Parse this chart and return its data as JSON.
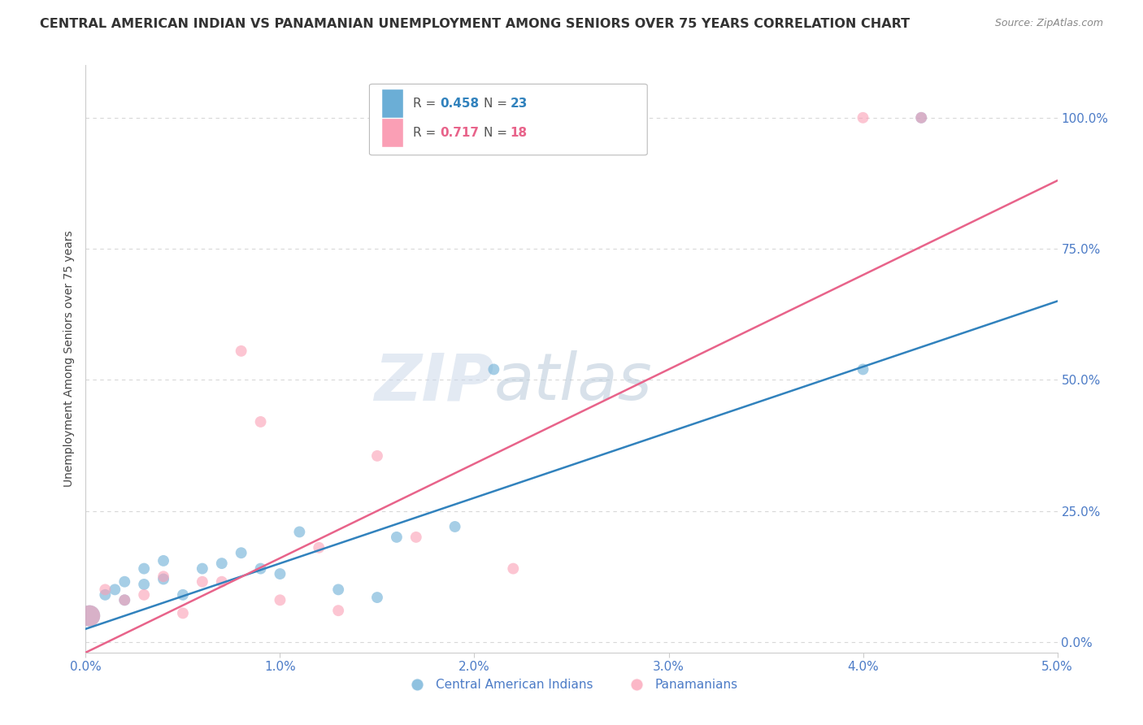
{
  "title": "CENTRAL AMERICAN INDIAN VS PANAMANIAN UNEMPLOYMENT AMONG SENIORS OVER 75 YEARS CORRELATION CHART",
  "source": "Source: ZipAtlas.com",
  "ylabel": "Unemployment Among Seniors over 75 years",
  "xlim": [
    0.0,
    0.05
  ],
  "ylim": [
    -0.02,
    1.1
  ],
  "legend_labels": [
    "Central American Indians",
    "Panamanians"
  ],
  "R_blue": "0.458",
  "N_blue": "23",
  "R_pink": "0.717",
  "N_pink": "18",
  "blue_color": "#6baed6",
  "pink_color": "#fa9fb5",
  "blue_line_color": "#3182bd",
  "pink_line_color": "#e8638a",
  "watermark_zip": "ZIP",
  "watermark_atlas": "atlas",
  "blue_scatter_x": [
    0.0002,
    0.001,
    0.0015,
    0.002,
    0.002,
    0.003,
    0.003,
    0.004,
    0.004,
    0.005,
    0.006,
    0.007,
    0.008,
    0.009,
    0.01,
    0.011,
    0.013,
    0.015,
    0.016,
    0.019,
    0.021,
    0.04,
    0.043
  ],
  "blue_scatter_y": [
    0.05,
    0.09,
    0.1,
    0.08,
    0.115,
    0.11,
    0.14,
    0.12,
    0.155,
    0.09,
    0.14,
    0.15,
    0.17,
    0.14,
    0.13,
    0.21,
    0.1,
    0.085,
    0.2,
    0.22,
    0.52,
    0.52,
    1.0
  ],
  "blue_sizes": [
    350,
    100,
    100,
    100,
    100,
    100,
    100,
    100,
    100,
    100,
    100,
    100,
    100,
    100,
    100,
    100,
    100,
    100,
    100,
    100,
    100,
    100,
    100
  ],
  "pink_scatter_x": [
    0.0002,
    0.001,
    0.002,
    0.003,
    0.004,
    0.005,
    0.006,
    0.007,
    0.008,
    0.009,
    0.01,
    0.012,
    0.013,
    0.015,
    0.017,
    0.022,
    0.04,
    0.043
  ],
  "pink_scatter_y": [
    0.05,
    0.1,
    0.08,
    0.09,
    0.125,
    0.055,
    0.115,
    0.115,
    0.555,
    0.42,
    0.08,
    0.18,
    0.06,
    0.355,
    0.2,
    0.14,
    1.0,
    1.0
  ],
  "pink_sizes": [
    350,
    100,
    100,
    100,
    100,
    100,
    100,
    100,
    100,
    100,
    100,
    100,
    100,
    100,
    100,
    100,
    100,
    100
  ],
  "blue_line_x0": 0.0,
  "blue_line_x1": 0.05,
  "blue_line_y0": 0.025,
  "blue_line_y1": 0.65,
  "pink_line_x0": 0.0,
  "pink_line_x1": 0.05,
  "pink_line_y0": -0.02,
  "pink_line_y1": 0.88,
  "x_tick_vals": [
    0.0,
    0.01,
    0.02,
    0.03,
    0.04,
    0.05
  ],
  "x_tick_labels": [
    "0.0%",
    "1.0%",
    "2.0%",
    "3.0%",
    "4.0%",
    "5.0%"
  ],
  "y_tick_vals": [
    0.0,
    0.25,
    0.5,
    0.75,
    1.0
  ],
  "y_tick_labels": [
    "0.0%",
    "25.0%",
    "50.0%",
    "75.0%",
    "100.0%"
  ],
  "tick_color": "#4d7cc7",
  "grid_color": "#d8d8d8",
  "spine_color": "#cccccc",
  "title_fontsize": 11.5,
  "source_fontsize": 9,
  "axis_fontsize": 11,
  "ylabel_fontsize": 10
}
